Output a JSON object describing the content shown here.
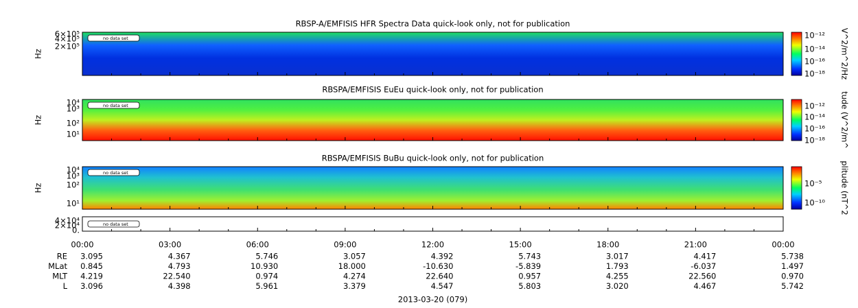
{
  "panels": [
    {
      "title": "RBSP-A/EMFISIS  HFR Spectra Data quick-look only, not for publication",
      "y_label": "Hz",
      "y_ticks": [
        "6×10⁵",
        "4×10⁵",
        "2×10⁵"
      ],
      "colorbar_label": "V^2/m^2/Hz",
      "colorbar_ticks": [
        "10⁻¹²",
        "10⁻¹⁴",
        "10⁻¹⁶",
        "10⁻¹⁸"
      ],
      "legend": "no data set"
    },
    {
      "title": "RBSPA/EMFISIS  EuEu quick-look only, not for publication",
      "y_label": "Hz",
      "y_ticks": [
        "10⁴",
        "10³",
        "10²",
        "10¹"
      ],
      "colorbar_label": "tude (V^2/m^",
      "colorbar_ticks": [
        "10⁻¹²",
        "10⁻¹⁴",
        "10⁻¹⁶",
        "10⁻¹⁸"
      ],
      "legend": "no data set"
    },
    {
      "title": "RBSPA/EMFISIS  BuBu quick-look only, not for publication",
      "y_label": "Hz",
      "y_ticks": [
        "10⁴",
        "10³",
        "10²",
        "10¹"
      ],
      "colorbar_label": "plitude (nT^2",
      "colorbar_ticks": [
        "10⁻⁵",
        "10⁻¹⁰"
      ],
      "legend": "no data set"
    },
    {
      "y_ticks": [
        "4×10⁴",
        "2×10⁴",
        "0."
      ],
      "legend": "no data set"
    }
  ],
  "x_axis": {
    "ticks": [
      "00:00",
      "03:00",
      "06:00",
      "09:00",
      "12:00",
      "15:00",
      "18:00",
      "21:00",
      "00:00"
    ]
  },
  "ephemeris": {
    "rows": [
      {
        "label": "RE",
        "values": [
          "3.095",
          "4.367",
          "5.746",
          "3.057",
          "4.392",
          "5.743",
          "3.017",
          "4.417",
          "5.738"
        ]
      },
      {
        "label": "MLat",
        "values": [
          "0.845",
          "4.793",
          "10.930",
          "18.000",
          "-10.630",
          "-5.839",
          "1.793",
          "-6.037",
          "1.497"
        ]
      },
      {
        "label": "MLT",
        "values": [
          "4.219",
          "22.540",
          "0.974",
          "4.274",
          "22.640",
          "0.957",
          "4.255",
          "22.560",
          "0.970"
        ]
      },
      {
        "label": "L",
        "values": [
          "3.096",
          "4.398",
          "5.961",
          "3.379",
          "4.547",
          "5.803",
          "3.020",
          "4.467",
          "5.742"
        ]
      }
    ]
  },
  "date": "2013-03-20 (079)"
}
